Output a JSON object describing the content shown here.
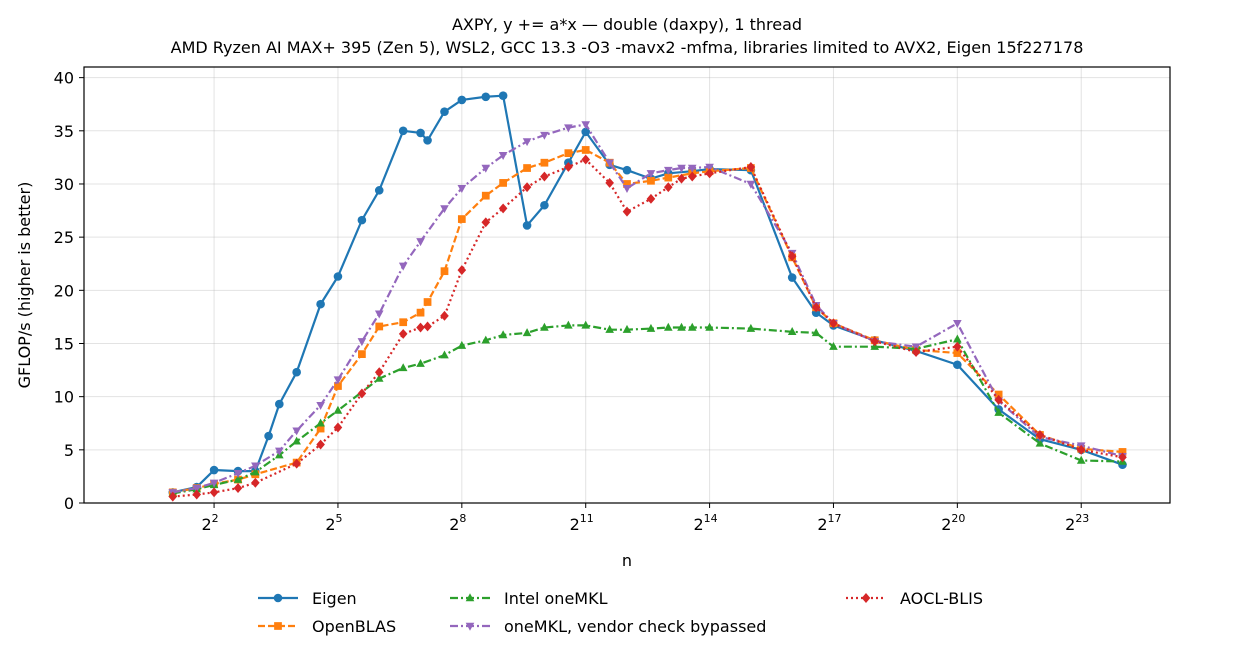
{
  "chart_data": {
    "type": "line",
    "title": "AXPY, y += a*x — double (daxpy), 1 thread",
    "subtitle": "AMD Ryzen AI MAX+ 395 (Zen 5), WSL2, GCC 13.3 -O3 -mavx2 -mfma, libraries limited to AVX2, Eigen 15f227178",
    "xlabel": "n",
    "ylabel": "GFLOP/s (higher is better)",
    "x_scale": "log2",
    "xlim_log2": [
      -1.15,
      25.15
    ],
    "ylim": [
      0,
      41
    ],
    "x_tick_base": "2",
    "x_tick_exponents": [
      "2",
      "5",
      "8",
      "11",
      "14",
      "17",
      "20",
      "23"
    ],
    "y_ticks": [
      0,
      5,
      10,
      15,
      20,
      25,
      30,
      35,
      40
    ],
    "grid": true,
    "legend_position": "bottom-center",
    "series": [
      {
        "name": "Eigen",
        "color": "#1f77b4",
        "dash": "solid",
        "marker": "circle",
        "log2_x": [
          1,
          1.58,
          2,
          2.58,
          3,
          3.32,
          3.58,
          4,
          4.58,
          5,
          5.58,
          6,
          6.58,
          7,
          7.17,
          7.58,
          8,
          8.58,
          9,
          9.58,
          10,
          10.58,
          11,
          11.58,
          12,
          12.58,
          13,
          13.58,
          14,
          15,
          16,
          16.58,
          17,
          18,
          19,
          20,
          21,
          22,
          23,
          24
        ],
        "y": [
          1.0,
          1.5,
          3.1,
          3.0,
          3.0,
          6.3,
          9.3,
          12.3,
          18.7,
          21.3,
          26.6,
          29.4,
          35.0,
          34.8,
          34.1,
          36.8,
          37.9,
          38.2,
          38.3,
          26.1,
          28.0,
          32.0,
          34.9,
          31.8,
          31.3,
          30.5,
          31.0,
          31.2,
          31.4,
          31.3,
          21.2,
          17.9,
          16.7,
          15.3,
          14.3,
          13.0,
          8.8,
          6.0,
          5.0,
          3.6
        ]
      },
      {
        "name": "OpenBLAS",
        "color": "#ff7f0e",
        "dash": "dashed",
        "marker": "square",
        "log2_x": [
          1,
          1.58,
          2,
          2.58,
          3,
          4,
          4.58,
          5,
          5.58,
          6,
          6.58,
          7,
          7.17,
          7.58,
          8,
          8.58,
          9,
          9.58,
          10,
          10.58,
          11,
          11.58,
          12,
          12.58,
          13,
          13.58,
          14,
          15,
          16,
          16.58,
          17,
          18,
          19,
          20,
          21,
          22,
          23,
          24
        ],
        "y": [
          1.0,
          1.4,
          1.8,
          2.2,
          2.7,
          3.8,
          7.0,
          11.0,
          14.0,
          16.6,
          17.0,
          17.9,
          18.9,
          21.8,
          26.7,
          28.9,
          30.1,
          31.5,
          32.0,
          32.9,
          33.2,
          32.0,
          30.0,
          30.3,
          30.6,
          31.0,
          31.2,
          31.5,
          23.1,
          18.4,
          16.9,
          15.3,
          14.4,
          14.1,
          10.2,
          6.4,
          5.1,
          4.8
        ]
      },
      {
        "name": "Intel oneMKL",
        "color": "#2ca02c",
        "dash": "dashdot",
        "marker": "triangle-up",
        "log2_x": [
          1,
          1.58,
          2,
          2.58,
          3,
          3.58,
          4,
          4.58,
          5,
          6,
          6.58,
          7,
          7.58,
          8,
          8.58,
          9,
          9.58,
          10,
          10.58,
          11,
          11.58,
          12,
          12.58,
          13,
          13.32,
          13.58,
          14,
          15,
          16,
          16.58,
          17,
          18,
          19,
          20,
          21,
          22,
          23,
          24
        ],
        "y": [
          0.9,
          1.3,
          1.7,
          2.2,
          2.9,
          4.5,
          5.8,
          7.5,
          8.7,
          11.7,
          12.7,
          13.1,
          13.9,
          14.8,
          15.3,
          15.8,
          16.0,
          16.5,
          16.7,
          16.7,
          16.3,
          16.3,
          16.4,
          16.5,
          16.5,
          16.5,
          16.5,
          16.4,
          16.1,
          16.0,
          14.7,
          14.7,
          14.5,
          15.4,
          8.5,
          5.6,
          4.0,
          3.9
        ]
      },
      {
        "name": "oneMKL, vendor check bypassed",
        "color": "#9467bd",
        "dash": "dashdot",
        "marker": "triangle-down",
        "log2_x": [
          1,
          1.58,
          2,
          2.58,
          3,
          3.58,
          4,
          4.58,
          5,
          5.58,
          6,
          6.58,
          7,
          7.58,
          8,
          8.58,
          9,
          9.58,
          10,
          10.58,
          11,
          11.58,
          12,
          12.58,
          13,
          13.32,
          13.58,
          14,
          15,
          16,
          16.58,
          17,
          18,
          19,
          20,
          21,
          22,
          23,
          24
        ],
        "y": [
          1.0,
          1.4,
          1.9,
          2.8,
          3.5,
          4.9,
          6.8,
          9.2,
          11.6,
          15.2,
          17.8,
          22.3,
          24.6,
          27.7,
          29.6,
          31.5,
          32.7,
          34.0,
          34.6,
          35.3,
          35.6,
          32.0,
          29.6,
          31.0,
          31.3,
          31.5,
          31.5,
          31.6,
          30.0,
          23.5,
          18.6,
          16.9,
          15.2,
          14.7,
          16.9,
          9.6,
          6.2,
          5.4,
          4.4
        ]
      },
      {
        "name": "AOCL-BLIS",
        "color": "#d62728",
        "dash": "dotted",
        "marker": "diamond",
        "log2_x": [
          1,
          1.58,
          2,
          2.58,
          3,
          4,
          4.58,
          5,
          5.58,
          6,
          6.58,
          7,
          7.17,
          7.58,
          8,
          8.58,
          9,
          9.58,
          10,
          10.58,
          11,
          11.58,
          12,
          12.58,
          13,
          13.32,
          13.58,
          14,
          15,
          16,
          16.58,
          17,
          18,
          19,
          20,
          21,
          22,
          23,
          24
        ],
        "y": [
          0.6,
          0.8,
          1.0,
          1.4,
          1.9,
          3.7,
          5.5,
          7.1,
          10.3,
          12.3,
          15.9,
          16.5,
          16.6,
          17.6,
          21.9,
          26.4,
          27.7,
          29.7,
          30.7,
          31.6,
          32.3,
          30.1,
          27.4,
          28.6,
          29.7,
          30.5,
          30.7,
          31.0,
          31.6,
          23.2,
          18.4,
          16.9,
          15.2,
          14.2,
          14.7,
          9.7,
          6.4,
          5.0,
          4.3
        ]
      }
    ]
  }
}
